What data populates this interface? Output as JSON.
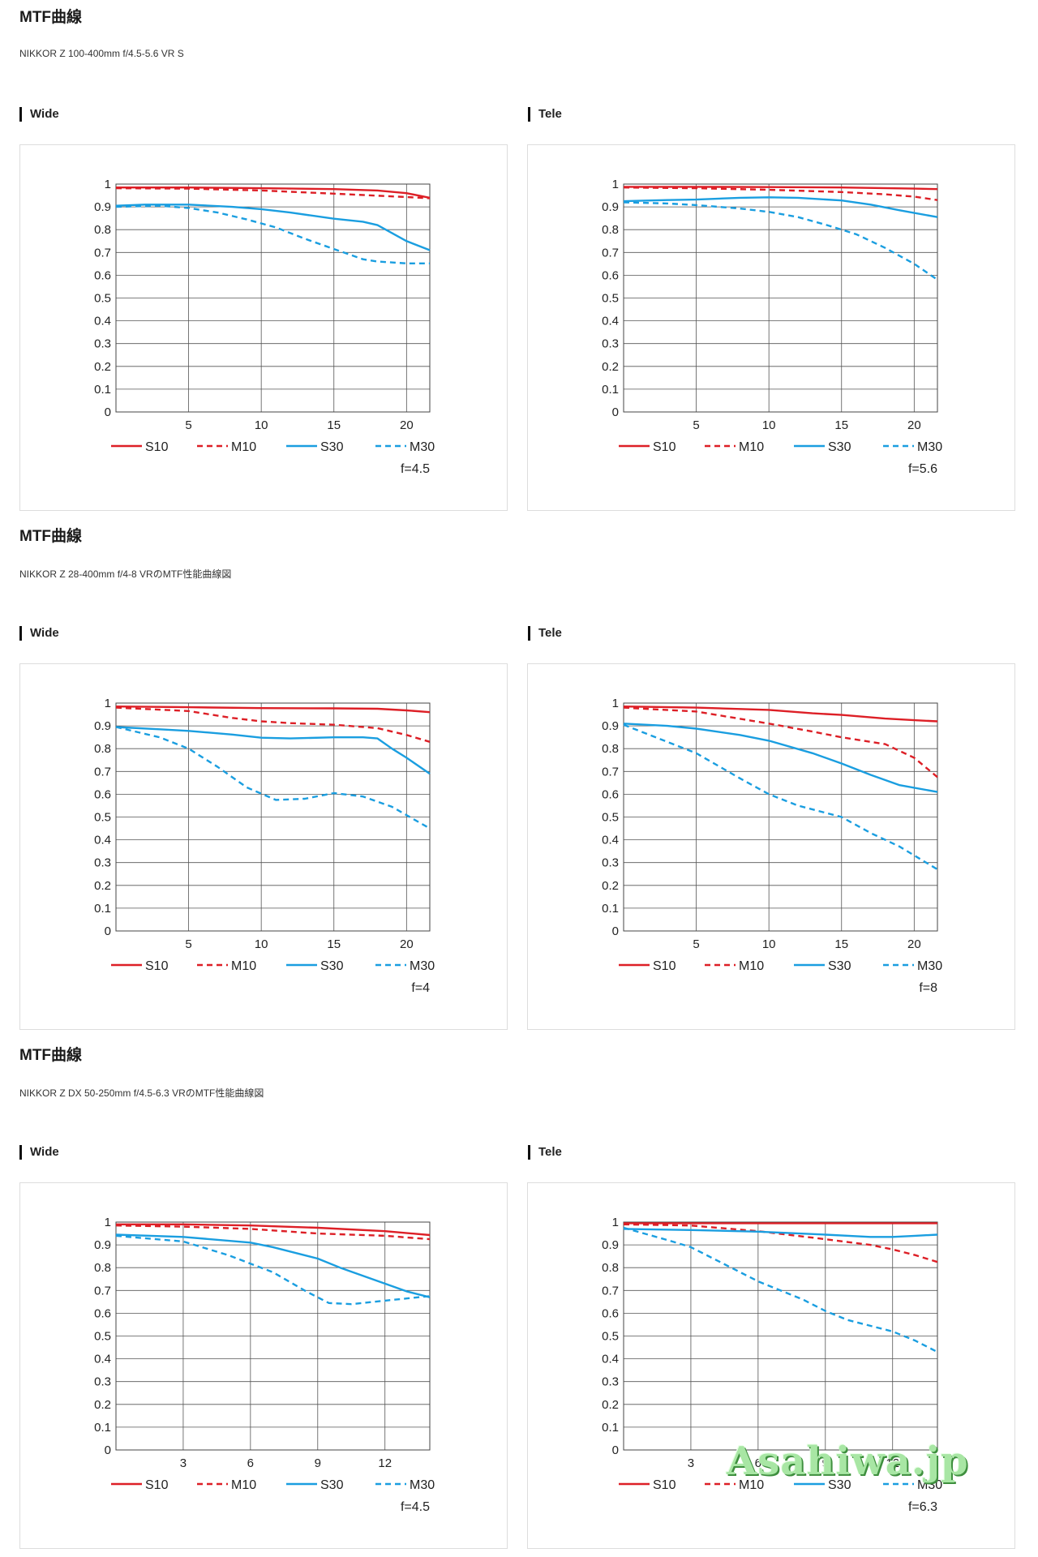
{
  "sections": [
    {
      "title": "MTF曲線",
      "subtitle": "NIKKOR Z 100-400mm f/4.5-5.6 VR S",
      "panels": [
        {
          "label": "Wide",
          "fstop": "f=4.5"
        },
        {
          "label": "Tele",
          "fstop": "f=5.6"
        }
      ]
    },
    {
      "title": "MTF曲線",
      "subtitle": "NIKKOR Z 28-400mm f/4-8 VRのMTF性能曲線図",
      "panels": [
        {
          "label": "Wide",
          "fstop": "f=4"
        },
        {
          "label": "Tele",
          "fstop": "f=8"
        }
      ]
    },
    {
      "title": "MTF曲線",
      "subtitle": "NIKKOR Z DX 50-250mm f/4.5-6.3 VRのMTF性能曲線図",
      "panels": [
        {
          "label": "Wide",
          "fstop": "f=4.5"
        },
        {
          "label": "Tele",
          "fstop": "f=6.3"
        }
      ]
    }
  ],
  "watermark": "Asahiwa.jp",
  "colors": {
    "red": "#dd1f26",
    "blue": "#1a9ee0",
    "grid": "#555555"
  },
  "legend": [
    "S10",
    "M10",
    "S30",
    "M30"
  ],
  "chart_data": [
    {
      "type": "line",
      "xlim": [
        0,
        21.6
      ],
      "ylim": [
        0,
        1
      ],
      "xticks": [
        5,
        10,
        15,
        20
      ],
      "yticks": [
        0,
        0.1,
        0.2,
        0.3,
        0.4,
        0.5,
        0.6,
        0.7,
        0.8,
        0.9,
        1
      ],
      "ytick_labels": [
        "0",
        "0.1",
        "0.2",
        "0.3",
        "0.4",
        "0.5",
        "0.6",
        "0.7",
        "0.8",
        "0.9",
        "1"
      ],
      "series": [
        {
          "name": "S10",
          "x": [
            0,
            5,
            10,
            15,
            18,
            20,
            21.6
          ],
          "y": [
            0.985,
            0.985,
            0.982,
            0.978,
            0.972,
            0.96,
            0.94
          ]
        },
        {
          "name": "M10",
          "x": [
            0,
            5,
            10,
            15,
            20,
            21.6
          ],
          "y": [
            0.982,
            0.98,
            0.972,
            0.958,
            0.943,
            0.938
          ]
        },
        {
          "name": "S30",
          "x": [
            0,
            2,
            5,
            8,
            10,
            12,
            15,
            17,
            18,
            19,
            20,
            21.6
          ],
          "y": [
            0.905,
            0.91,
            0.91,
            0.9,
            0.89,
            0.875,
            0.848,
            0.835,
            0.82,
            0.785,
            0.75,
            0.71
          ]
        },
        {
          "name": "M30",
          "x": [
            0,
            3,
            5,
            7,
            9,
            11,
            13,
            15,
            17,
            18,
            20,
            21.6
          ],
          "y": [
            0.9,
            0.905,
            0.895,
            0.875,
            0.845,
            0.81,
            0.76,
            0.715,
            0.67,
            0.66,
            0.652,
            0.652
          ]
        }
      ]
    },
    {
      "type": "line",
      "xlim": [
        0,
        21.6
      ],
      "ylim": [
        0,
        1
      ],
      "xticks": [
        5,
        10,
        15,
        20
      ],
      "yticks": [
        0,
        0.1,
        0.2,
        0.3,
        0.4,
        0.5,
        0.6,
        0.7,
        0.8,
        0.9,
        1
      ],
      "ytick_labels": [
        "0",
        "0.1",
        "0.2",
        "0.3",
        "0.4",
        "0.5",
        "0.6",
        "0.7",
        "0.8",
        "0.9",
        "1"
      ],
      "series": [
        {
          "name": "S10",
          "x": [
            0,
            5,
            10,
            15,
            20,
            21.6
          ],
          "y": [
            0.988,
            0.988,
            0.987,
            0.985,
            0.98,
            0.978
          ]
        },
        {
          "name": "M10",
          "x": [
            0,
            5,
            10,
            15,
            18,
            20,
            21.6
          ],
          "y": [
            0.985,
            0.982,
            0.975,
            0.965,
            0.955,
            0.945,
            0.93
          ]
        },
        {
          "name": "S30",
          "x": [
            0,
            3,
            5,
            8,
            10,
            12,
            15,
            17,
            19,
            21.6
          ],
          "y": [
            0.925,
            0.93,
            0.932,
            0.94,
            0.942,
            0.94,
            0.928,
            0.91,
            0.885,
            0.855
          ]
        },
        {
          "name": "M30",
          "x": [
            0,
            3,
            5,
            8,
            10,
            12,
            14,
            16,
            18,
            20,
            21.6
          ],
          "y": [
            0.92,
            0.915,
            0.908,
            0.893,
            0.878,
            0.855,
            0.82,
            0.78,
            0.72,
            0.65,
            0.58
          ]
        }
      ]
    },
    {
      "type": "line",
      "xlim": [
        0,
        21.6
      ],
      "ylim": [
        0,
        1
      ],
      "xticks": [
        5,
        10,
        15,
        20
      ],
      "yticks": [
        0,
        0.1,
        0.2,
        0.3,
        0.4,
        0.5,
        0.6,
        0.7,
        0.8,
        0.9,
        1
      ],
      "ytick_labels": [
        "0",
        "0.1",
        "0.2",
        "0.3",
        "0.4",
        "0.5",
        "0.6",
        "0.7",
        "0.8",
        "0.9",
        "1"
      ],
      "series": [
        {
          "name": "S10",
          "x": [
            0,
            5,
            10,
            15,
            18,
            20,
            21.6
          ],
          "y": [
            0.985,
            0.982,
            0.978,
            0.977,
            0.975,
            0.968,
            0.96
          ]
        },
        {
          "name": "M10",
          "x": [
            0,
            5,
            8,
            10,
            12,
            15,
            18,
            20,
            21.6
          ],
          "y": [
            0.98,
            0.965,
            0.935,
            0.92,
            0.912,
            0.905,
            0.89,
            0.86,
            0.83
          ]
        },
        {
          "name": "S30",
          "x": [
            0,
            3,
            5,
            8,
            10,
            12,
            15,
            17,
            18,
            19,
            20,
            21.6
          ],
          "y": [
            0.895,
            0.885,
            0.878,
            0.862,
            0.848,
            0.845,
            0.85,
            0.85,
            0.845,
            0.8,
            0.76,
            0.69
          ]
        },
        {
          "name": "M30",
          "x": [
            0,
            3,
            5,
            7,
            9,
            11,
            13,
            15,
            17,
            19,
            21.6
          ],
          "y": [
            0.895,
            0.85,
            0.8,
            0.72,
            0.63,
            0.575,
            0.58,
            0.605,
            0.59,
            0.545,
            0.45
          ]
        }
      ]
    },
    {
      "type": "line",
      "xlim": [
        0,
        21.6
      ],
      "ylim": [
        0,
        1
      ],
      "xticks": [
        5,
        10,
        15,
        20
      ],
      "yticks": [
        0,
        0.1,
        0.2,
        0.3,
        0.4,
        0.5,
        0.6,
        0.7,
        0.8,
        0.9,
        1
      ],
      "ytick_labels": [
        "0",
        "0.1",
        "0.2",
        "0.3",
        "0.4",
        "0.5",
        "0.6",
        "0.7",
        "0.8",
        "0.9",
        "1"
      ],
      "series": [
        {
          "name": "S10",
          "x": [
            0,
            5,
            10,
            13,
            15,
            18,
            20,
            21.6
          ],
          "y": [
            0.985,
            0.98,
            0.97,
            0.955,
            0.948,
            0.932,
            0.925,
            0.92
          ]
        },
        {
          "name": "M10",
          "x": [
            0,
            5,
            10,
            13,
            15,
            18,
            20,
            21.6
          ],
          "y": [
            0.98,
            0.963,
            0.91,
            0.875,
            0.85,
            0.82,
            0.76,
            0.675
          ]
        },
        {
          "name": "S30",
          "x": [
            0,
            3,
            5,
            8,
            10,
            13,
            15,
            17,
            19,
            21.6
          ],
          "y": [
            0.91,
            0.9,
            0.888,
            0.86,
            0.835,
            0.78,
            0.735,
            0.685,
            0.64,
            0.61
          ]
        },
        {
          "name": "M30",
          "x": [
            0,
            3,
            5,
            8,
            10,
            12,
            15,
            17,
            19,
            21.6
          ],
          "y": [
            0.905,
            0.83,
            0.78,
            0.67,
            0.6,
            0.55,
            0.5,
            0.43,
            0.37,
            0.27
          ]
        }
      ]
    },
    {
      "type": "line",
      "xlim": [
        0,
        14
      ],
      "ylim": [
        0,
        1
      ],
      "xticks": [
        3,
        6,
        9,
        12
      ],
      "yticks": [
        0,
        0.1,
        0.2,
        0.3,
        0.4,
        0.5,
        0.6,
        0.7,
        0.8,
        0.9,
        1
      ],
      "ytick_labels": [
        "0",
        "0.1",
        "0.2",
        "0.3",
        "0.4",
        "0.5",
        "0.6",
        "0.7",
        "0.8",
        "0.9",
        "1"
      ],
      "series": [
        {
          "name": "S10",
          "x": [
            0,
            3,
            6,
            9,
            12,
            14
          ],
          "y": [
            0.99,
            0.99,
            0.985,
            0.975,
            0.96,
            0.943
          ]
        },
        {
          "name": "M10",
          "x": [
            0,
            3,
            6,
            9,
            12,
            14
          ],
          "y": [
            0.985,
            0.98,
            0.97,
            0.95,
            0.94,
            0.925
          ]
        },
        {
          "name": "S30",
          "x": [
            0,
            3,
            6,
            7,
            9,
            10,
            12,
            13,
            14
          ],
          "y": [
            0.945,
            0.935,
            0.91,
            0.89,
            0.84,
            0.8,
            0.73,
            0.695,
            0.67
          ]
        },
        {
          "name": "M30",
          "x": [
            0,
            3,
            5,
            7,
            8.5,
            9.5,
            10.5,
            12,
            13,
            14
          ],
          "y": [
            0.94,
            0.915,
            0.855,
            0.78,
            0.695,
            0.645,
            0.64,
            0.655,
            0.665,
            0.675
          ]
        }
      ]
    },
    {
      "type": "line",
      "xlim": [
        0,
        14
      ],
      "ylim": [
        0,
        1
      ],
      "xticks": [
        3,
        6,
        9,
        12
      ],
      "yticks": [
        0,
        0.1,
        0.2,
        0.3,
        0.4,
        0.5,
        0.6,
        0.7,
        0.8,
        0.9,
        1
      ],
      "ytick_labels": [
        "0",
        "0.1",
        "0.2",
        "0.3",
        "0.4",
        "0.5",
        "0.6",
        "0.7",
        "0.8",
        "0.9",
        "1"
      ],
      "series": [
        {
          "name": "S10",
          "x": [
            0,
            3,
            6,
            9,
            12,
            14
          ],
          "y": [
            0.995,
            0.995,
            0.995,
            0.995,
            0.995,
            0.995
          ]
        },
        {
          "name": "M10",
          "x": [
            0,
            3,
            6,
            9,
            11,
            12,
            13,
            14
          ],
          "y": [
            0.99,
            0.985,
            0.96,
            0.925,
            0.9,
            0.88,
            0.855,
            0.825
          ]
        },
        {
          "name": "S30",
          "x": [
            0,
            3,
            6,
            9,
            11,
            12,
            13,
            14
          ],
          "y": [
            0.97,
            0.965,
            0.958,
            0.945,
            0.935,
            0.935,
            0.94,
            0.945
          ]
        },
        {
          "name": "M30",
          "x": [
            0,
            2,
            3,
            4,
            6,
            8,
            9,
            10,
            12,
            13,
            14
          ],
          "y": [
            0.975,
            0.92,
            0.89,
            0.84,
            0.74,
            0.66,
            0.61,
            0.57,
            0.52,
            0.48,
            0.43
          ]
        }
      ]
    }
  ]
}
